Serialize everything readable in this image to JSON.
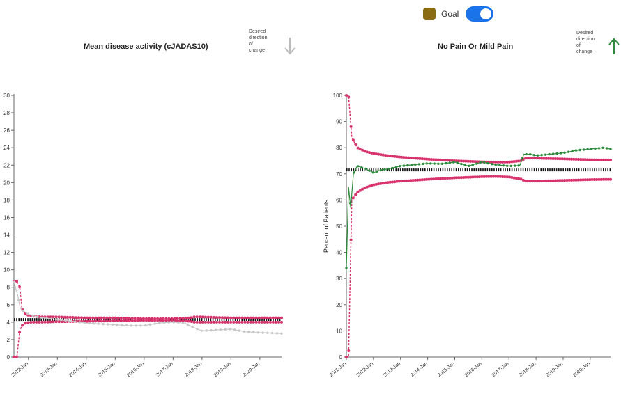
{
  "legend": {
    "goal_label": "Goal",
    "goal_on": true,
    "goal_color": "#8a6d12",
    "toggle_color": "#1a73e8"
  },
  "colors": {
    "band": "#d6336c",
    "observed": "#2e8b3d",
    "observed_faded": "#c8c8c8",
    "goal": "#111111"
  },
  "chart_data": [
    {
      "type": "line",
      "title": "Mean disease activity (cJADAS10)",
      "desired_direction_label": [
        "Desired",
        "direction",
        "of",
        "change"
      ],
      "desired_direction": "down",
      "desired_arrow_color": "#bdbdbd",
      "ylabel": "",
      "ylim": [
        0,
        30
      ],
      "yticks": [
        0,
        2,
        4,
        6,
        8,
        10,
        12,
        14,
        16,
        18,
        20,
        22,
        24,
        26,
        28,
        30
      ],
      "xlim": [
        2011.5,
        2020.75
      ],
      "x_ticks": [
        {
          "label": "2012-Jan",
          "x": 2012
        },
        {
          "label": "2013-Jan",
          "x": 2013
        },
        {
          "label": "2014-Jan",
          "x": 2014
        },
        {
          "label": "2015-Jan",
          "x": 2015
        },
        {
          "label": "2016-Jan",
          "x": 2016
        },
        {
          "label": "2017-Jan",
          "x": 2017
        },
        {
          "label": "2018-Jan",
          "x": 2018
        },
        {
          "label": "2019-Jan",
          "x": 2019
        },
        {
          "label": "2020-Jan",
          "x": 2020
        }
      ],
      "goal": 4.3,
      "series": [
        {
          "role": "upper",
          "points": [
            [
              2011.5,
              8.7
            ],
            [
              2011.6,
              8.7
            ],
            [
              2011.7,
              8.0
            ],
            [
              2011.78,
              5.5
            ],
            [
              2011.9,
              4.9
            ],
            [
              2012.1,
              4.7
            ],
            [
              2012.5,
              4.6
            ],
            [
              2013,
              4.6
            ],
            [
              2014,
              4.5
            ],
            [
              2015,
              4.5
            ],
            [
              2016,
              4.4
            ],
            [
              2017,
              4.4
            ],
            [
              2017.6,
              4.5
            ],
            [
              2017.7,
              4.6
            ],
            [
              2018,
              4.6
            ],
            [
              2019,
              4.5
            ],
            [
              2020,
              4.5
            ],
            [
              2020.75,
              4.5
            ]
          ]
        },
        {
          "role": "lower",
          "points": [
            [
              2011.5,
              0
            ],
            [
              2011.6,
              0
            ],
            [
              2011.7,
              3.0
            ],
            [
              2011.78,
              3.6
            ],
            [
              2011.9,
              3.9
            ],
            [
              2012.1,
              4.0
            ],
            [
              2012.5,
              4.0
            ],
            [
              2013,
              4.05
            ],
            [
              2014,
              4.1
            ],
            [
              2015,
              4.15
            ],
            [
              2016,
              4.2
            ],
            [
              2017,
              4.2
            ],
            [
              2017.6,
              4.1
            ],
            [
              2017.7,
              4.0
            ],
            [
              2018,
              4.0
            ],
            [
              2019,
              4.0
            ],
            [
              2020,
              4.0
            ],
            [
              2020.75,
              4.0
            ]
          ]
        },
        {
          "role": "observed",
          "points": [
            [
              2011.5,
              8.6
            ],
            [
              2011.62,
              7.2
            ],
            [
              2011.72,
              5.6
            ],
            [
              2011.82,
              5.3
            ],
            [
              2011.95,
              5.0
            ],
            [
              2012.2,
              4.7
            ],
            [
              2012.5,
              4.5
            ],
            [
              2013,
              4.3
            ],
            [
              2013.5,
              4.1
            ],
            [
              2014,
              3.9
            ],
            [
              2014.5,
              3.8
            ],
            [
              2015,
              3.7
            ],
            [
              2015.5,
              3.6
            ],
            [
              2016,
              3.6
            ],
            [
              2016.5,
              3.9
            ],
            [
              2017,
              4.0
            ],
            [
              2017.4,
              3.9
            ],
            [
              2017.7,
              3.4
            ],
            [
              2018,
              3.0
            ],
            [
              2018.5,
              3.1
            ],
            [
              2019,
              3.2
            ],
            [
              2019.5,
              2.9
            ],
            [
              2020,
              2.8
            ],
            [
              2020.75,
              2.7
            ]
          ]
        }
      ]
    },
    {
      "type": "line",
      "title": "No Pain Or Mild Pain",
      "desired_direction_label": [
        "Desired",
        "direction",
        "of",
        "change"
      ],
      "desired_direction": "up",
      "desired_arrow_color": "#2e8b3d",
      "ylabel": "Percent of Patients",
      "ylim": [
        0,
        100
      ],
      "yticks": [
        0,
        10,
        20,
        30,
        40,
        50,
        60,
        70,
        80,
        90,
        100
      ],
      "xlim": [
        2011,
        2020.75
      ],
      "x_ticks": [
        {
          "label": "2011-Jan",
          "x": 2011
        },
        {
          "label": "2012-Jan",
          "x": 2012
        },
        {
          "label": "2013-Jan",
          "x": 2013
        },
        {
          "label": "2014-Jan",
          "x": 2014
        },
        {
          "label": "2015-Jan",
          "x": 2015
        },
        {
          "label": "2016-Jan",
          "x": 2016
        },
        {
          "label": "2017-Jan",
          "x": 2017
        },
        {
          "label": "2018-Jan",
          "x": 2018
        },
        {
          "label": "2019-Jan",
          "x": 2019
        },
        {
          "label": "2020-Jan",
          "x": 2020
        }
      ],
      "goal": 71.5,
      "series": [
        {
          "role": "upper",
          "points": [
            [
              2011,
              100
            ],
            [
              2011.08,
              100
            ],
            [
              2011.2,
              84
            ],
            [
              2011.4,
              80
            ],
            [
              2011.7,
              78.5
            ],
            [
              2012,
              77.8
            ],
            [
              2012.5,
              77
            ],
            [
              2013,
              76.4
            ],
            [
              2014,
              75.6
            ],
            [
              2015,
              75
            ],
            [
              2016,
              74.6
            ],
            [
              2016.5,
              74.5
            ],
            [
              2017,
              74.5
            ],
            [
              2017.45,
              75
            ],
            [
              2017.6,
              76
            ],
            [
              2018,
              76
            ],
            [
              2019,
              75.7
            ],
            [
              2020,
              75.4
            ],
            [
              2020.75,
              75.3
            ]
          ]
        },
        {
          "role": "lower",
          "points": [
            [
              2011,
              0
            ],
            [
              2011.08,
              0
            ],
            [
              2011.2,
              60
            ],
            [
              2011.4,
              63
            ],
            [
              2011.7,
              64.8
            ],
            [
              2012,
              65.8
            ],
            [
              2012.5,
              66.7
            ],
            [
              2013,
              67.2
            ],
            [
              2014,
              67.9
            ],
            [
              2015,
              68.5
            ],
            [
              2016,
              68.9
            ],
            [
              2016.5,
              69
            ],
            [
              2017,
              68.8
            ],
            [
              2017.45,
              68
            ],
            [
              2017.6,
              67.2
            ],
            [
              2018,
              67.2
            ],
            [
              2019,
              67.5
            ],
            [
              2020,
              67.8
            ],
            [
              2020.75,
              67.9
            ]
          ]
        },
        {
          "role": "observed",
          "points": [
            [
              2011,
              34
            ],
            [
              2011.08,
              65
            ],
            [
              2011.16,
              57
            ],
            [
              2011.26,
              70
            ],
            [
              2011.4,
              73
            ],
            [
              2011.7,
              72
            ],
            [
              2012,
              70.5
            ],
            [
              2012.3,
              71.5
            ],
            [
              2012.6,
              72
            ],
            [
              2013,
              73
            ],
            [
              2013.5,
              73.5
            ],
            [
              2014,
              74
            ],
            [
              2014.5,
              73.8
            ],
            [
              2015,
              74.5
            ],
            [
              2015.5,
              73
            ],
            [
              2016,
              74.5
            ],
            [
              2016.5,
              73.5
            ],
            [
              2017,
              73
            ],
            [
              2017.4,
              73.2
            ],
            [
              2017.55,
              77.5
            ],
            [
              2017.8,
              77.5
            ],
            [
              2018,
              77
            ],
            [
              2018.5,
              77.5
            ],
            [
              2019,
              78
            ],
            [
              2019.5,
              79
            ],
            [
              2020,
              79.5
            ],
            [
              2020.5,
              80
            ],
            [
              2020.75,
              79.5
            ]
          ]
        }
      ]
    }
  ]
}
